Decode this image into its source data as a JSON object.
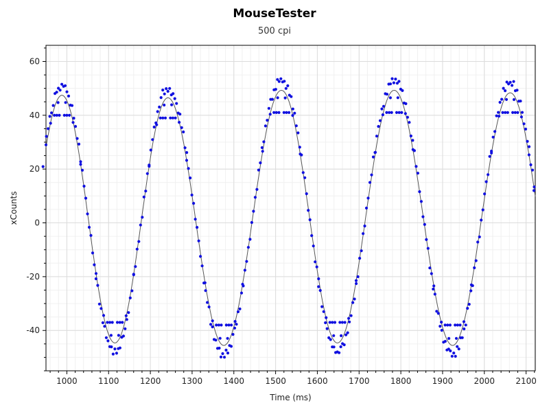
{
  "chart_data": {
    "type": "scatter",
    "title": "MouseTester",
    "subtitle": "500 cpi",
    "xlabel": "Time (ms)",
    "ylabel": "xCounts",
    "xlim": [
      950,
      2122
    ],
    "ylim": [
      -55,
      66
    ],
    "xticks": [
      1000,
      1100,
      1200,
      1300,
      1400,
      1500,
      1600,
      1700,
      1800,
      1900,
      2000,
      2100
    ],
    "yticks": [
      -40,
      -20,
      0,
      20,
      40,
      60
    ],
    "xtick_labels": [
      "1000",
      "1100",
      "1200",
      "1300",
      "1400",
      "1500",
      "1600",
      "1700",
      "1800",
      "1900",
      "2000",
      "2100"
    ],
    "ytick_labels": [
      "-40",
      "-20",
      "0",
      "20",
      "40",
      "60"
    ],
    "grid": true,
    "series": [
      {
        "kind": "points",
        "color": "#1010e0",
        "peaks": [
          {
            "x": 988,
            "y": 51,
            "inner": 40
          },
          {
            "x": 1242,
            "y": 50,
            "inner": 39
          },
          {
            "x": 1514,
            "y": 53,
            "inner": 41
          },
          {
            "x": 1784,
            "y": 53,
            "inner": 41
          },
          {
            "x": 2062,
            "y": 52,
            "inner": 41
          }
        ],
        "troughs": [
          {
            "x": 1115,
            "y": -48,
            "inner": -37
          },
          {
            "x": 1376,
            "y": -49,
            "inner": -38
          },
          {
            "x": 1648,
            "y": -48,
            "inner": -37
          },
          {
            "x": 1924,
            "y": -49,
            "inner": -38
          }
        ],
        "start": {
          "x": 950,
          "y": 29
        },
        "end": {
          "x": 2122,
          "y": 12
        }
      },
      {
        "kind": "line",
        "color": "#555555"
      }
    ]
  }
}
